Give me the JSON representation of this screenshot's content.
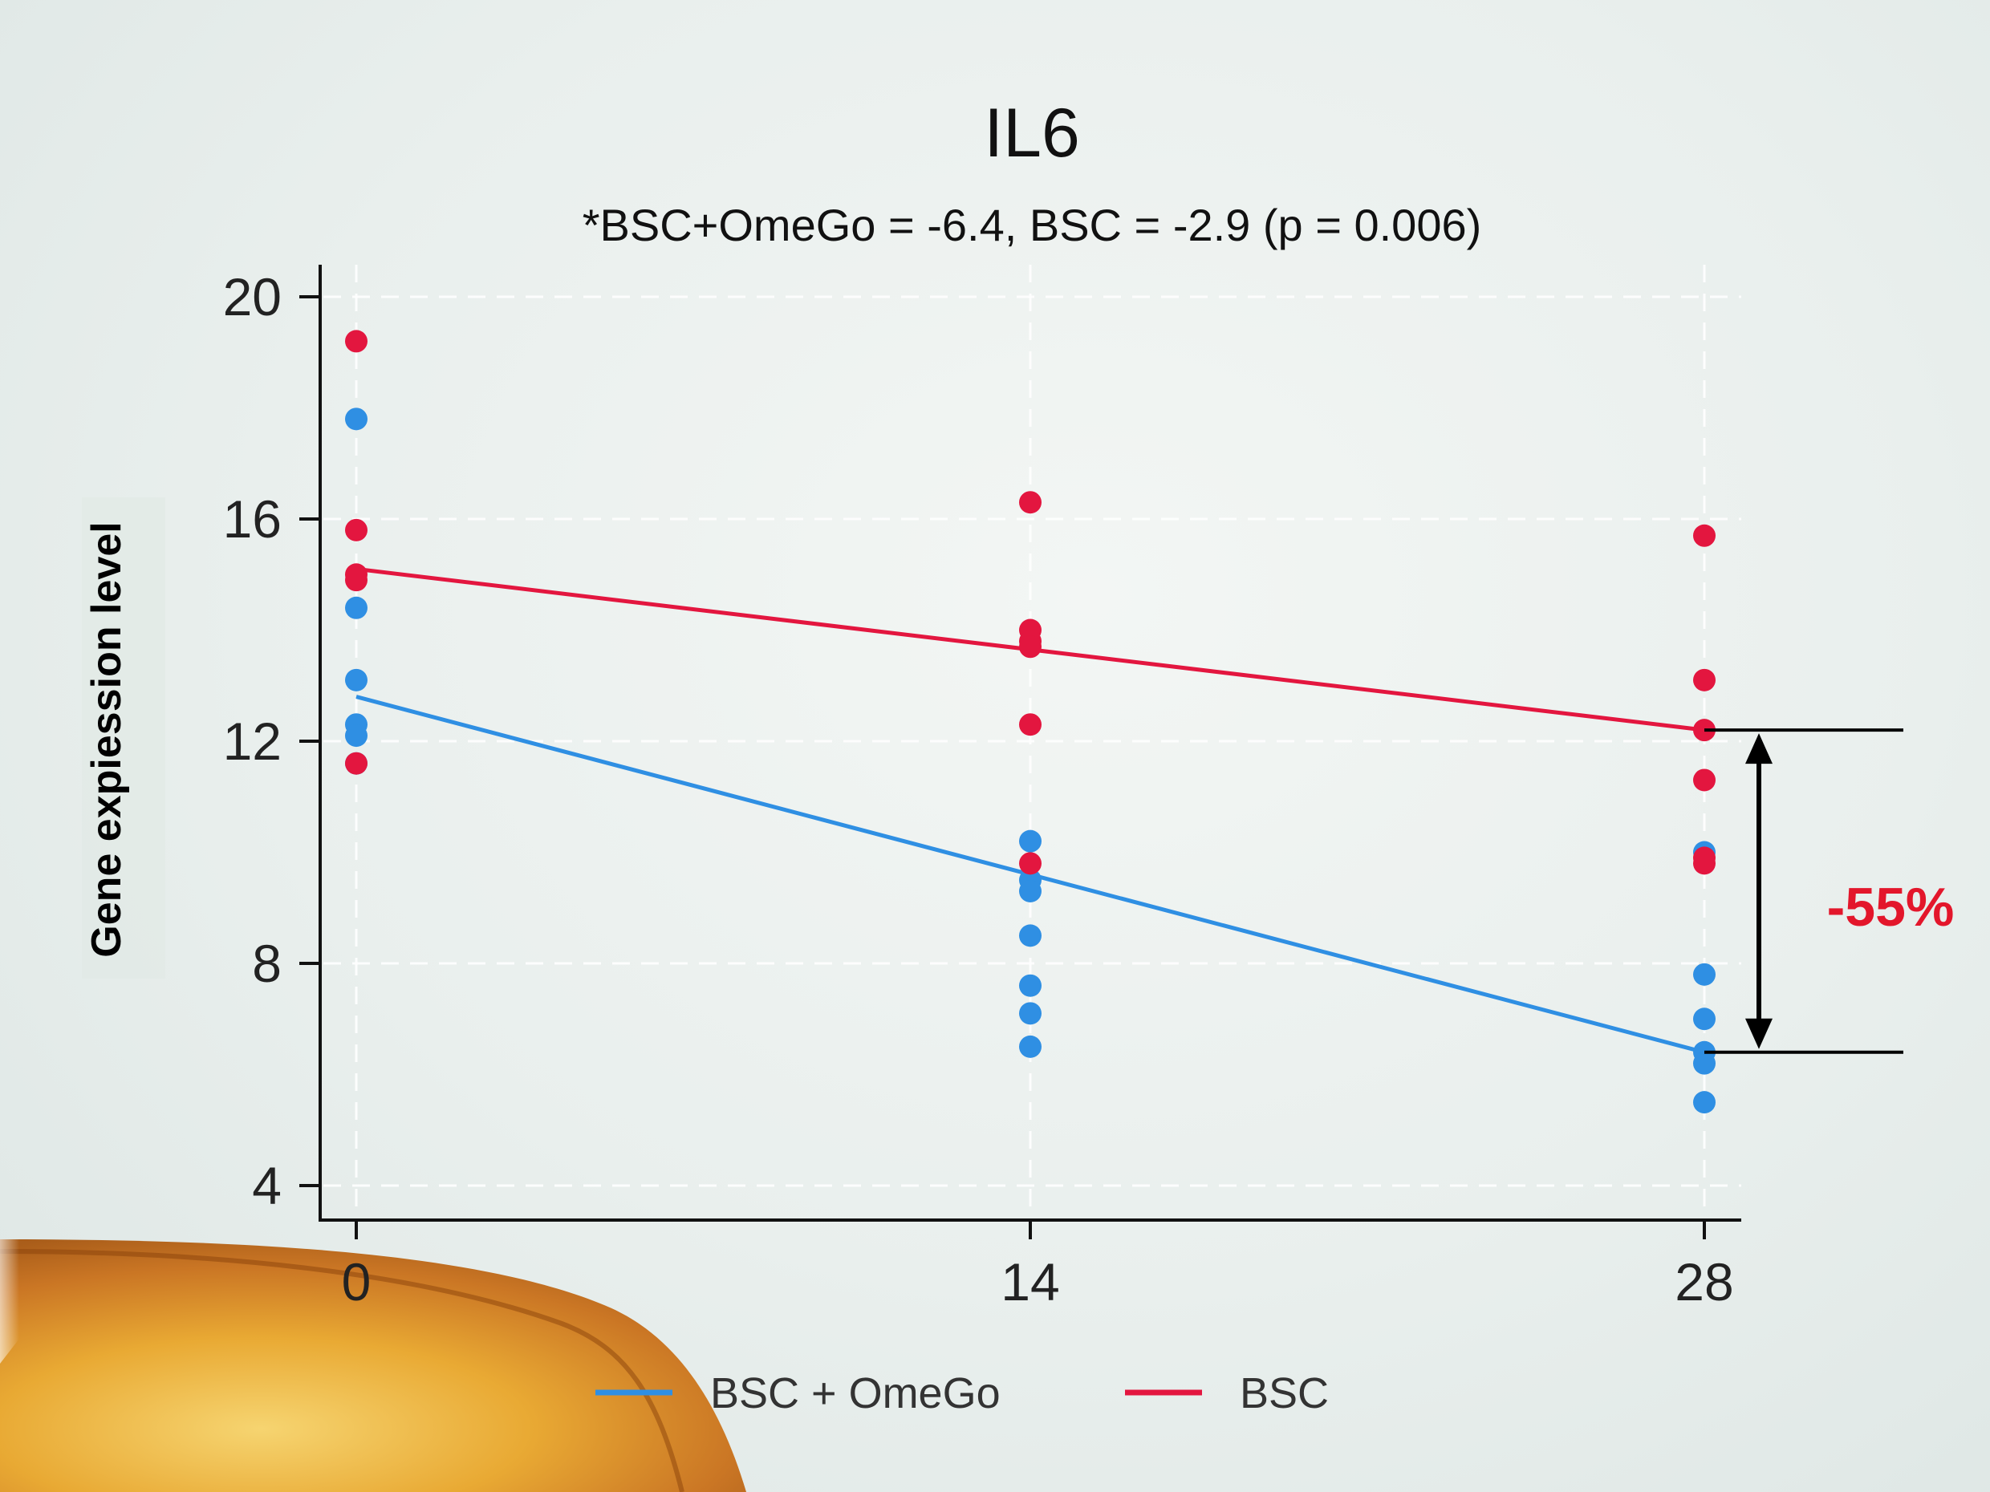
{
  "chart_data": {
    "type": "scatter",
    "title": "IL6",
    "subtitle": "*BSC+OmeGo = -6.4,  BSC = -2.9 (p = 0.006)",
    "xlabel": "",
    "ylabel": "Gene expiession level",
    "x_ticks": [
      0,
      14,
      28
    ],
    "y_ticks": [
      4,
      8,
      12,
      16,
      20
    ],
    "xlim": [
      -0.8,
      28.8
    ],
    "ylim": [
      3.3,
      20.6
    ],
    "grid": true,
    "legend_position": "bottom",
    "colors": {
      "BSC + OmeGo": "#2f8fe3",
      "BSC": "#e3163f"
    },
    "series": [
      {
        "name": "BSC + OmeGo",
        "points": [
          [
            0,
            17.8
          ],
          [
            0,
            14.4
          ],
          [
            0,
            13.1
          ],
          [
            0,
            12.3
          ],
          [
            0,
            12.1
          ],
          [
            0,
            11.6
          ],
          [
            14,
            10.2
          ],
          [
            14,
            9.5
          ],
          [
            14,
            9.3
          ],
          [
            14,
            8.5
          ],
          [
            14,
            7.6
          ],
          [
            14,
            7.1
          ],
          [
            14,
            6.5
          ],
          [
            28,
            10.0
          ],
          [
            28,
            7.8
          ],
          [
            28,
            7.0
          ],
          [
            28,
            6.4
          ],
          [
            28,
            6.2
          ],
          [
            28,
            5.5
          ]
        ],
        "fit": [
          [
            0,
            12.8
          ],
          [
            28,
            6.4
          ]
        ]
      },
      {
        "name": "BSC",
        "points": [
          [
            0,
            19.2
          ],
          [
            0,
            15.8
          ],
          [
            0,
            15.0
          ],
          [
            0,
            14.9
          ],
          [
            0,
            11.6
          ],
          [
            14,
            16.3
          ],
          [
            14,
            14.0
          ],
          [
            14,
            13.8
          ],
          [
            14,
            13.7
          ],
          [
            14,
            12.3
          ],
          [
            14,
            9.8
          ],
          [
            28,
            15.7
          ],
          [
            28,
            13.1
          ],
          [
            28,
            12.2
          ],
          [
            28,
            11.3
          ],
          [
            28,
            9.9
          ],
          [
            28,
            9.8
          ]
        ],
        "fit": [
          [
            0,
            15.1
          ],
          [
            28,
            12.2
          ]
        ]
      }
    ],
    "annotations": [
      {
        "text": "-55%",
        "from_y": 12.2,
        "to_y": 6.4
      }
    ]
  }
}
